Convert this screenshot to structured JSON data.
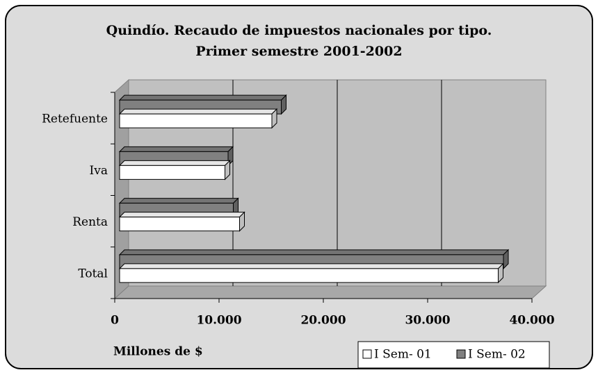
{
  "chart_data": {
    "type": "bar3d",
    "title": "Quindío. Recaudo de impuestos nacionales por tipo.",
    "subtitle": "Primer semestre 2001-2002",
    "x_label": "Millones de $",
    "categories": [
      "Total",
      "Renta",
      "Iva",
      "Retefuente"
    ],
    "series": [
      {
        "name": "I Sem- 01",
        "color": "#ffffff",
        "values": [
          36300,
          11500,
          10100,
          14600
        ]
      },
      {
        "name": "I Sem- 02",
        "color": "#808080",
        "values": [
          36800,
          10900,
          10400,
          15500
        ]
      }
    ],
    "xlim": [
      0,
      40000
    ],
    "xticks": [
      0,
      {
        "value": 10000,
        "label": "10.000"
      },
      {
        "value": 20000,
        "label": "20.000"
      },
      {
        "value": 30000,
        "label": "30.000"
      },
      {
        "value": 40000,
        "label": "40.000"
      }
    ],
    "grid": true,
    "legend": "bottom-right"
  }
}
